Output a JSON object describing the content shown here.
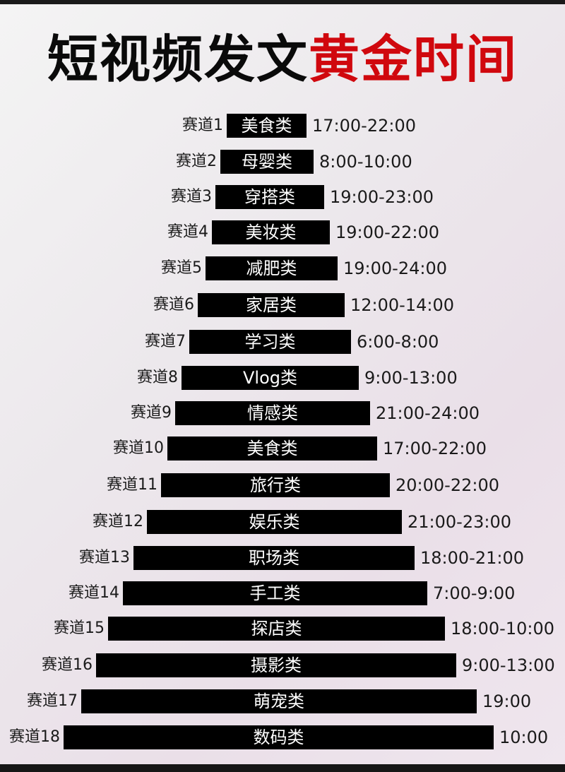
{
  "title": {
    "black_part": "短视频发文",
    "red_part": "黄金时间",
    "red_color": "#d0080e"
  },
  "rows": [
    {
      "track": "赛道1",
      "category": "美食类",
      "time": "17:00-22:00"
    },
    {
      "track": "赛道2",
      "category": "母婴类",
      "time": "8:00-10:00"
    },
    {
      "track": "赛道3",
      "category": "穿搭类",
      "time": "19:00-23:00"
    },
    {
      "track": "赛道4",
      "category": "美妆类",
      "time": "19:00-22:00"
    },
    {
      "track": "赛道5",
      "category": "减肥类",
      "time": "19:00-24:00"
    },
    {
      "track": "赛道6",
      "category": "家居类",
      "time": "12:00-14:00"
    },
    {
      "track": "赛道7",
      "category": "学习类",
      "time": "6:00-8:00"
    },
    {
      "track": "赛道8",
      "category": "Vlog类",
      "time": "9:00-13:00"
    },
    {
      "track": "赛道9",
      "category": "情感类",
      "time": "21:00-24:00"
    },
    {
      "track": "赛道10",
      "category": "美食类",
      "time": "17:00-22:00"
    },
    {
      "track": "赛道11",
      "category": "旅行类",
      "time": "20:00-22:00"
    },
    {
      "track": "赛道12",
      "category": "娱乐类",
      "time": "21:00-23:00"
    },
    {
      "track": "赛道13",
      "category": "职场类",
      "time": "18:00-21:00"
    },
    {
      "track": "赛道14",
      "category": "手工类",
      "time": "7:00-9:00"
    },
    {
      "track": "赛道15",
      "category": "探店类",
      "time": "18:00-10:00"
    },
    {
      "track": "赛道16",
      "category": "摄影类",
      "time": "9:00-13:00"
    },
    {
      "track": "赛道17",
      "category": "萌宠类",
      "time": "19:00"
    },
    {
      "track": "赛道18",
      "category": "数码类",
      "time": "10:00"
    }
  ]
}
